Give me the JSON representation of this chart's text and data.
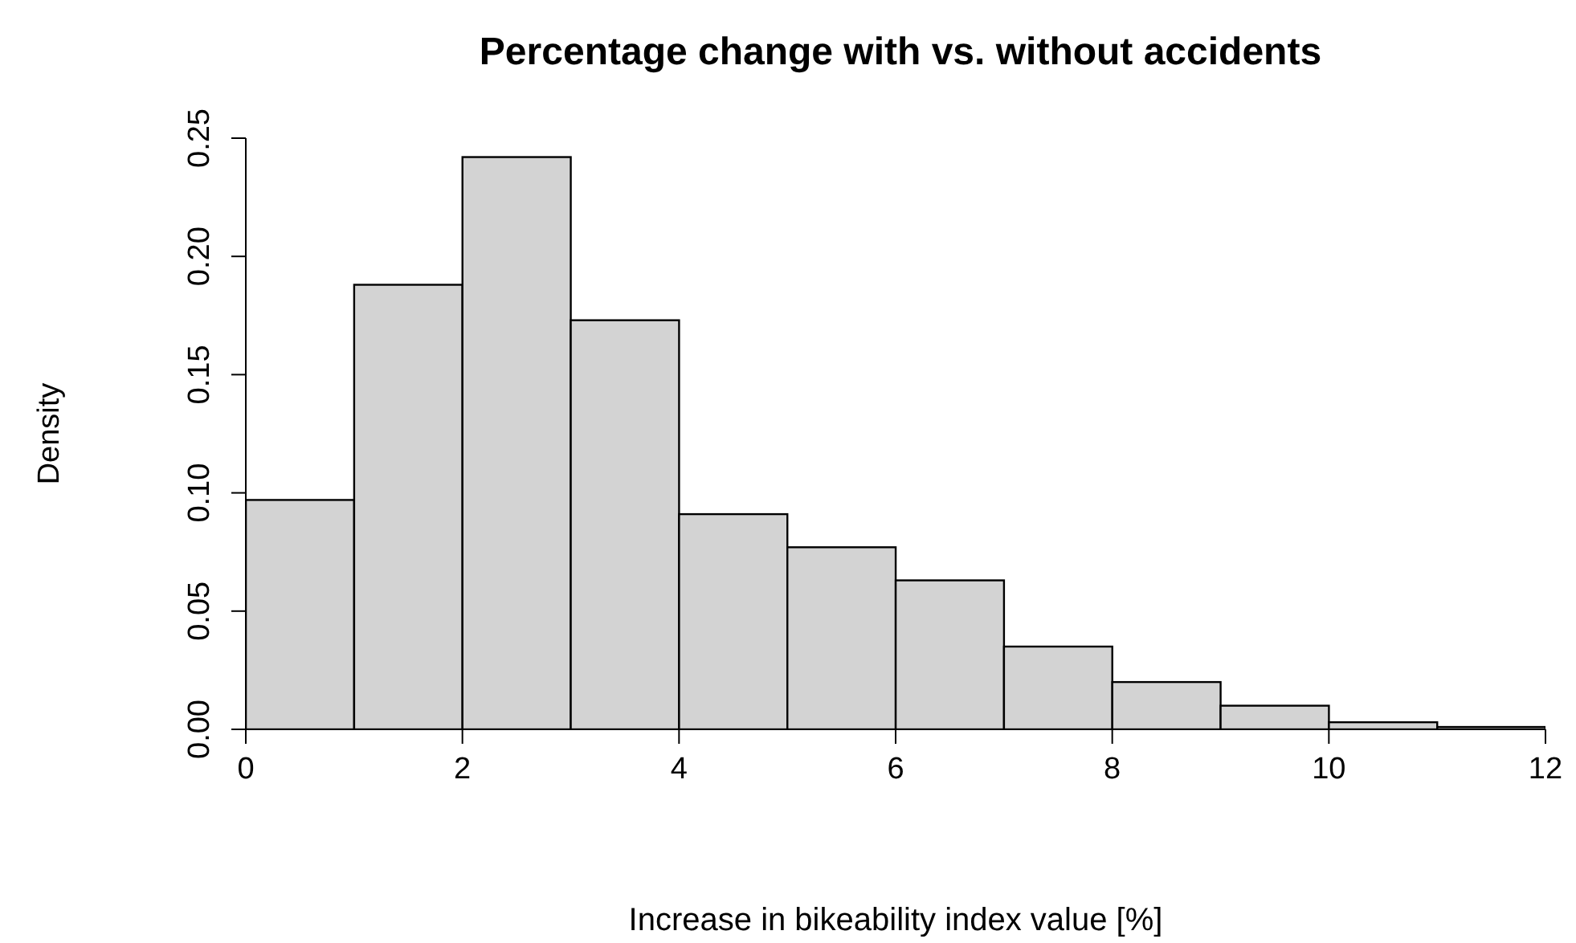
{
  "chart_data": {
    "type": "histogram",
    "title": "Percentage change with vs. without accidents",
    "xlabel": "Increase in bikeability index value [%]",
    "ylabel": "Density",
    "bins": [
      0,
      1,
      2,
      3,
      4,
      5,
      6,
      7,
      8,
      9,
      10,
      11,
      12
    ],
    "values": [
      0.097,
      0.188,
      0.242,
      0.173,
      0.091,
      0.077,
      0.063,
      0.035,
      0.02,
      0.01,
      0.003,
      0.001
    ],
    "color": "#d3d3d3",
    "xlim": [
      0,
      12
    ],
    "xticks": [
      0,
      2,
      4,
      6,
      8,
      10,
      12
    ],
    "ylim": [
      0,
      0.25
    ],
    "yticks": [
      {
        "value": 0,
        "label": "0.00"
      },
      {
        "value": 0.05,
        "label": "0.05"
      },
      {
        "value": 0.1,
        "label": "0.10"
      },
      {
        "value": 0.15,
        "label": "0.15"
      },
      {
        "value": 0.2,
        "label": "0.20"
      },
      {
        "value": 0.25,
        "label": "0.25"
      }
    ]
  }
}
